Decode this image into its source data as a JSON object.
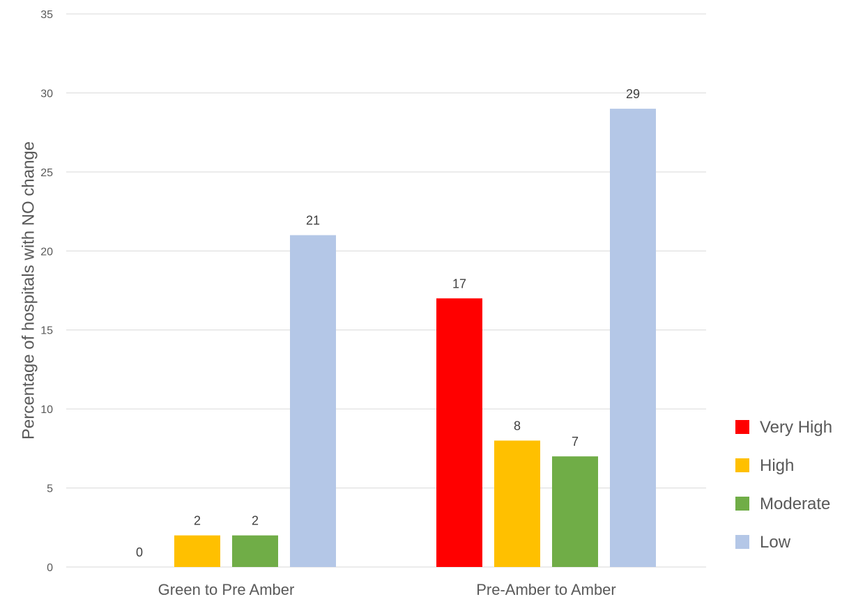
{
  "chart_data": {
    "type": "bar",
    "title": "",
    "xlabel": "",
    "ylabel": "Percentage of hospitals with NO change",
    "ylim": [
      0,
      35
    ],
    "yticks": [
      0,
      5,
      10,
      15,
      20,
      25,
      30,
      35
    ],
    "grid": true,
    "legend_position": "right",
    "categories": [
      "Green to Pre Amber",
      "Pre-Amber to Amber"
    ],
    "series": [
      {
        "name": "Very High",
        "color": "#ff0000",
        "values": [
          0,
          17
        ]
      },
      {
        "name": "High",
        "color": "#ffc000",
        "values": [
          2,
          8
        ]
      },
      {
        "name": "Moderate",
        "color": "#70ad47",
        "values": [
          2,
          7
        ]
      },
      {
        "name": "Low",
        "color": "#b4c7e7",
        "values": [
          21,
          29
        ]
      }
    ]
  }
}
